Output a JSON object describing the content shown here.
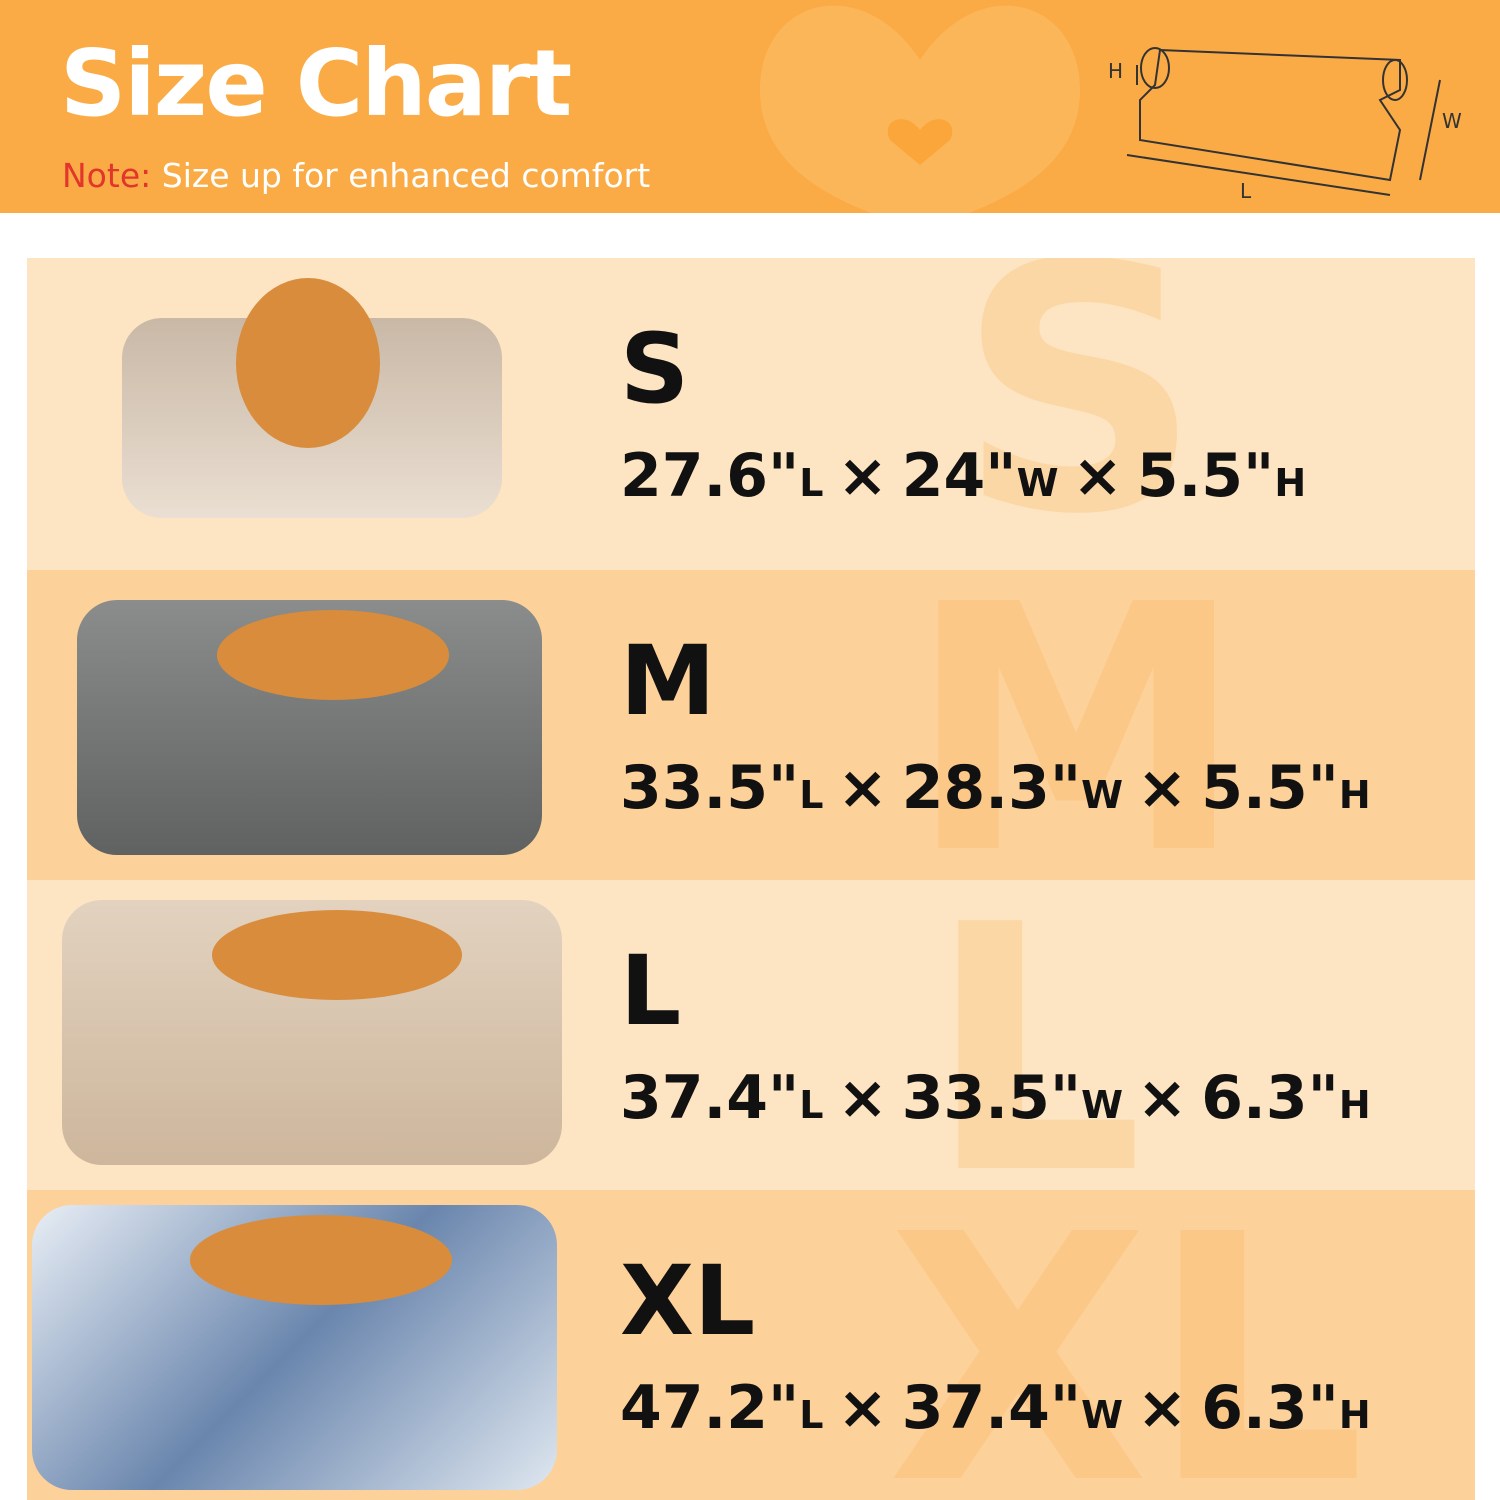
{
  "header": {
    "title": "Size Chart",
    "note_label": "Note:",
    "note": "Size up for enhanced comfort",
    "diagram": {
      "height_label": "H",
      "width_label": "W",
      "length_label": "L"
    }
  },
  "separator": "×",
  "rows": [
    {
      "size": "S",
      "dims": [
        {
          "value": "27.6\"",
          "unit": "L"
        },
        {
          "value": "24\"",
          "unit": "W"
        },
        {
          "value": "5.5\"",
          "unit": "H"
        }
      ]
    },
    {
      "size": "M",
      "dims": [
        {
          "value": "33.5\"",
          "unit": "L"
        },
        {
          "value": "28.3\"",
          "unit": "W"
        },
        {
          "value": "5.5\"",
          "unit": "H"
        }
      ]
    },
    {
      "size": "L",
      "dims": [
        {
          "value": "37.4\"",
          "unit": "L"
        },
        {
          "value": "33.5\"",
          "unit": "W"
        },
        {
          "value": "6.3\"",
          "unit": "H"
        }
      ]
    },
    {
      "size": "XL",
      "dims": [
        {
          "value": "47.2\"",
          "unit": "L"
        },
        {
          "value": "37.4\"",
          "unit": "W"
        },
        {
          "value": "6.3\"",
          "unit": "H"
        }
      ]
    }
  ]
}
